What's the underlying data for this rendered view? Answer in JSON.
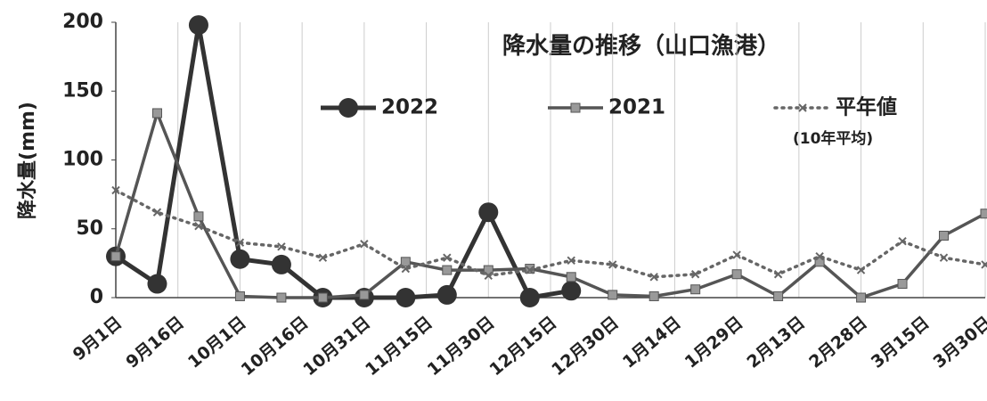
{
  "chart_data": {
    "type": "line",
    "title": "降水量の推移（山口漁港）",
    "y_label": "降水量(mm)",
    "legend_note": "(10年平均)",
    "x": [
      0,
      10,
      20,
      30,
      40,
      50,
      60,
      70,
      80,
      90,
      100,
      110,
      120,
      130,
      140,
      150,
      160,
      170,
      180,
      190,
      200,
      210
    ],
    "xlim": [
      0,
      210
    ],
    "xticks": [
      {
        "value": 0,
        "label": "9月1日"
      },
      {
        "value": 15,
        "label": "9月16日"
      },
      {
        "value": 30,
        "label": "10月1日"
      },
      {
        "value": 45,
        "label": "10月16日"
      },
      {
        "value": 60,
        "label": "10月31日"
      },
      {
        "value": 75,
        "label": "11月15日"
      },
      {
        "value": 90,
        "label": "11月30日"
      },
      {
        "value": 105,
        "label": "12月15日"
      },
      {
        "value": 120,
        "label": "12月30日"
      },
      {
        "value": 135,
        "label": "1月14日"
      },
      {
        "value": 150,
        "label": "1月29日"
      },
      {
        "value": 165,
        "label": "2月13日"
      },
      {
        "value": 180,
        "label": "2月28日"
      },
      {
        "value": 195,
        "label": "3月15日"
      },
      {
        "value": 210,
        "label": "3月30日"
      }
    ],
    "ylim": [
      0,
      200
    ],
    "yticks": [
      0,
      50,
      100,
      150,
      200
    ],
    "grid": true,
    "series": [
      {
        "name": "2022",
        "color": "#333333",
        "style": "solid-circle",
        "values": [
          30,
          10,
          198,
          28,
          24,
          0,
          0,
          0,
          2,
          62,
          0,
          5,
          null,
          null,
          null,
          null,
          null,
          null,
          null,
          null,
          null,
          null
        ]
      },
      {
        "name": "2021",
        "color": "#555555",
        "style": "solid-square",
        "values": [
          30,
          134,
          59,
          1,
          0,
          0,
          2,
          26,
          20,
          20,
          21,
          15,
          2,
          1,
          6,
          17,
          1,
          26,
          0,
          10,
          45,
          61
        ]
      },
      {
        "name": "平年値",
        "color": "#666666",
        "style": "dotted-cross",
        "values": [
          78,
          62,
          52,
          40,
          37,
          29,
          39,
          21,
          29,
          16,
          20,
          27,
          24,
          15,
          17,
          31,
          17,
          30,
          20,
          41,
          29,
          24
        ]
      }
    ]
  }
}
